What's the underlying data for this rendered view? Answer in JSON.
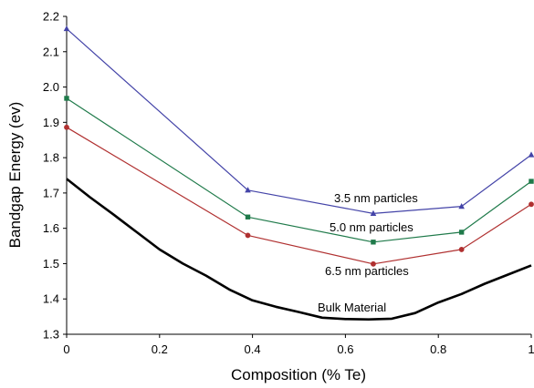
{
  "chart_data": {
    "type": "line",
    "xlabel": "Composition (% Te)",
    "ylabel": "Bandgap Energy (ev)",
    "xlim": [
      0,
      1
    ],
    "ylim": [
      1.3,
      2.2
    ],
    "x_ticks": [
      "0",
      "0.2",
      "0.4",
      "0.6",
      "0.8",
      "1"
    ],
    "y_ticks": [
      "1.3",
      "1.4",
      "1.5",
      "1.6",
      "1.7",
      "1.8",
      "1.9",
      "2.0",
      "2.1",
      "2.2"
    ],
    "grid": false,
    "series": [
      {
        "name": "3.5 nm particles",
        "color": "#4444a8",
        "marker": "triangle",
        "x": [
          0,
          0.39,
          0.66,
          0.85,
          1.0
        ],
        "y": [
          2.165,
          1.708,
          1.642,
          1.662,
          1.808
        ]
      },
      {
        "name": "5.0 nm particles",
        "color": "#1f7a4a",
        "marker": "square",
        "x": [
          0,
          0.39,
          0.66,
          0.85,
          1.0
        ],
        "y": [
          1.968,
          1.632,
          1.561,
          1.589,
          1.733
        ]
      },
      {
        "name": "6.5 nm particles",
        "color": "#b03030",
        "marker": "circle",
        "x": [
          0,
          0.39,
          0.66,
          0.85,
          1.0
        ],
        "y": [
          1.886,
          1.58,
          1.499,
          1.54,
          1.668
        ]
      },
      {
        "name": "Bulk Material",
        "color": "#000000",
        "marker": "none",
        "x": [
          0,
          0.05,
          0.1,
          0.15,
          0.2,
          0.25,
          0.3,
          0.35,
          0.4,
          0.45,
          0.5,
          0.55,
          0.6,
          0.65,
          0.7,
          0.75,
          0.8,
          0.85,
          0.9,
          0.95,
          1.0
        ],
        "y": [
          1.74,
          1.688,
          1.64,
          1.59,
          1.54,
          1.5,
          1.466,
          1.427,
          1.396,
          1.378,
          1.363,
          1.347,
          1.343,
          1.342,
          1.344,
          1.36,
          1.39,
          1.414,
          1.443,
          1.469,
          1.495
        ]
      }
    ]
  }
}
